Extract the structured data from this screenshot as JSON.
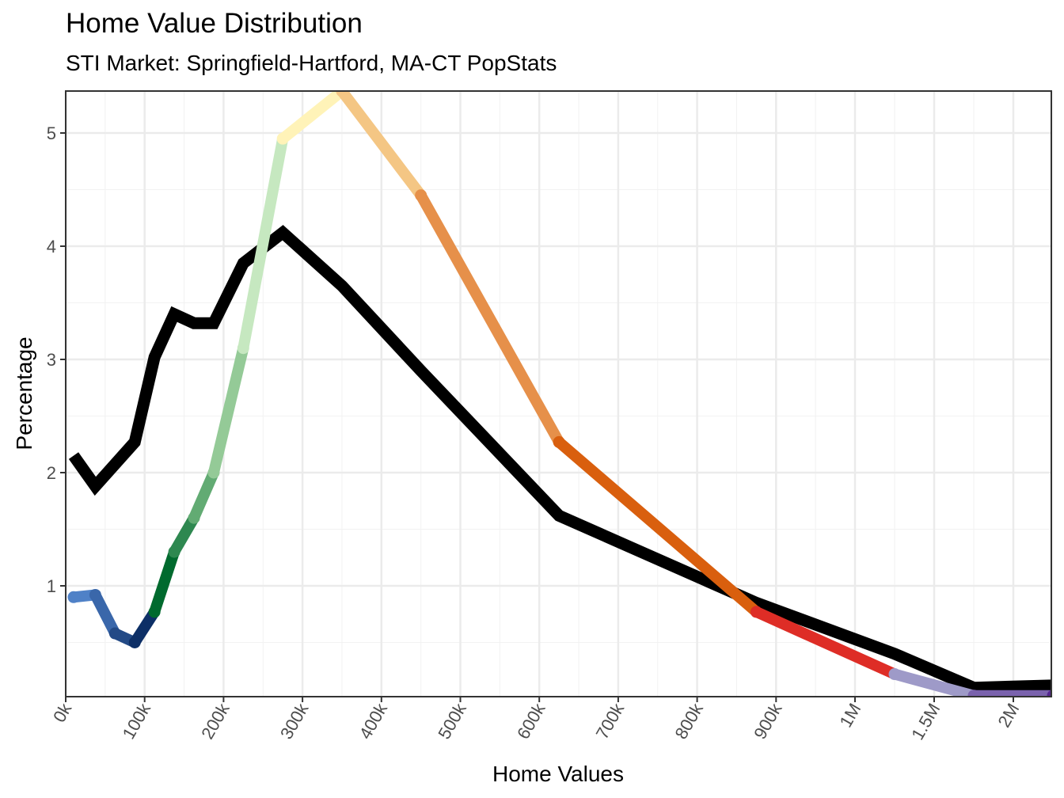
{
  "chart_data": {
    "type": "line",
    "title": "Home Value Distribution",
    "subtitle": "STI Market: Springfield-Hartford, MA-CT PopStats",
    "xlabel": "Home Values",
    "ylabel": "Percentage",
    "x_ticks": [
      {
        "value": 0,
        "label": "0k"
      },
      {
        "value": 100000,
        "label": "100k"
      },
      {
        "value": 200000,
        "label": "200k"
      },
      {
        "value": 300000,
        "label": "300k"
      },
      {
        "value": 400000,
        "label": "400k"
      },
      {
        "value": 500000,
        "label": "500k"
      },
      {
        "value": 600000,
        "label": "600k"
      },
      {
        "value": 700000,
        "label": "700k"
      },
      {
        "value": 800000,
        "label": "800k"
      },
      {
        "value": 900000,
        "label": "900k"
      },
      {
        "value": 1000000,
        "label": "1M"
      },
      {
        "value": 1500000,
        "label": "1.5M"
      },
      {
        "value": 2000000,
        "label": "2M"
      }
    ],
    "y_ticks": [
      1,
      2,
      3,
      4,
      5
    ],
    "ylim": [
      0.05,
      5.37
    ],
    "xlim": [
      0,
      2250000
    ],
    "grid": true,
    "series": [
      {
        "color": "#000000",
        "x": [
          10000,
          37500,
          87500,
          112500,
          137500,
          162500,
          187500,
          225000,
          275000,
          350000,
          450000,
          625000,
          875000,
          1250000,
          1750000,
          2250000
        ],
        "y": [
          2.15,
          1.88,
          2.27,
          3.02,
          3.4,
          3.32,
          3.32,
          3.85,
          4.12,
          3.65,
          2.9,
          1.62,
          0.85,
          0.4,
          0.1,
          0.12
        ]
      },
      {
        "x": [
          10000,
          37500,
          62500,
          87500,
          112500,
          137500,
          162500,
          187500,
          225000,
          275000,
          350000,
          450000,
          625000,
          875000,
          1250000,
          1750000,
          2250000
        ],
        "y": [
          0.9,
          0.92,
          0.58,
          0.5,
          0.77,
          1.3,
          1.6,
          2.0,
          3.1,
          4.95,
          5.37,
          4.45,
          2.27,
          0.77,
          0.22,
          0.03,
          0.03
        ],
        "colors": [
          "#4f81c7",
          "#3a67aa",
          "#234a86",
          "#0d2f66",
          "#006a2e",
          "#2e8850",
          "#62ab73",
          "#94ca97",
          "#c6e8c0",
          "#fff3b8",
          "#f4c684",
          "#e6904a",
          "#d95f0e",
          "#de2d26",
          "#9e9ac8",
          "#7a62ad",
          "#54278f"
        ]
      }
    ]
  }
}
